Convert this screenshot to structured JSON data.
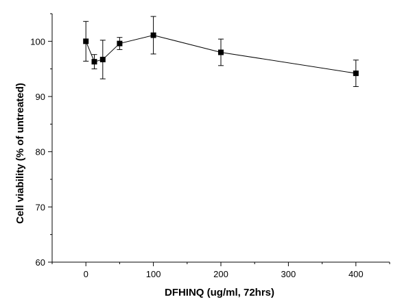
{
  "chart_data": {
    "type": "scatter",
    "xlabel": "DFHINQ (ug/ml, 72hrs)",
    "ylabel": "Cell viability (% of untreated)",
    "xlim": [
      -50,
      450
    ],
    "ylim": [
      60,
      105
    ],
    "x_ticks": [
      0,
      100,
      200,
      300,
      400
    ],
    "y_ticks": [
      60,
      70,
      80,
      90,
      100
    ],
    "x_minor_step": 50,
    "y_minor_step": 5,
    "grid": false,
    "series": [
      {
        "line": true,
        "marker": "square",
        "points": [
          {
            "x": 0,
            "y": 100.0,
            "err": 3.6
          },
          {
            "x": 12.5,
            "y": 96.3,
            "err": 1.3
          },
          {
            "x": 25,
            "y": 96.7,
            "err": 3.5
          },
          {
            "x": 50,
            "y": 99.6,
            "err": 1.1
          },
          {
            "x": 100,
            "y": 101.1,
            "err": 3.4
          },
          {
            "x": 200,
            "y": 98.0,
            "err": 2.4
          },
          {
            "x": 400,
            "y": 94.2,
            "err": 2.4
          }
        ]
      }
    ]
  }
}
